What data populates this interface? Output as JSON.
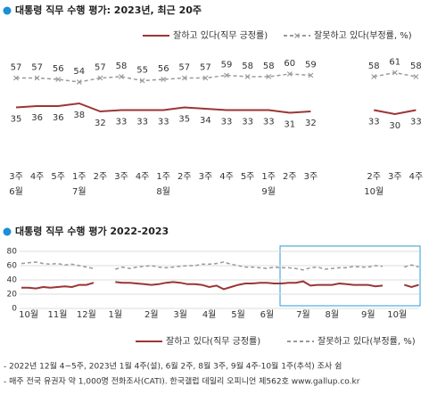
{
  "chart_data": [
    {
      "type": "line",
      "title": "대통령 직무 수행 평가: 2023년, 최근 20주",
      "categories": [
        "3주",
        "4주",
        "5주",
        "1주",
        "2주",
        "3주",
        "4주",
        "1주",
        "2주",
        "3주",
        "4주",
        "5주",
        "1주",
        "2주",
        "3주",
        null,
        null,
        "2주",
        "3주",
        "4주"
      ],
      "months": [
        "6월",
        null,
        null,
        "7월",
        null,
        null,
        null,
        "8월",
        null,
        null,
        null,
        null,
        "9월",
        null,
        null,
        null,
        null,
        "10월",
        null,
        null
      ],
      "ylim": [
        10,
        70
      ],
      "series": [
        {
          "name": "잘하고 있다(직무 긍정률)",
          "color": "#9b3535",
          "style": "solid",
          "values": [
            35,
            36,
            36,
            38,
            32,
            33,
            33,
            33,
            35,
            34,
            33,
            33,
            33,
            31,
            32,
            null,
            null,
            33,
            30,
            33
          ]
        },
        {
          "name": "잘못하고 있다(부정률, %)",
          "color": "#999999",
          "style": "dashed",
          "marker": "x",
          "values": [
            57,
            57,
            56,
            54,
            57,
            58,
            55,
            56,
            57,
            57,
            59,
            58,
            58,
            60,
            59,
            null,
            null,
            58,
            61,
            58
          ]
        }
      ]
    },
    {
      "type": "line",
      "title": "대통령 직무 수행 평가 2022-2023",
      "categories": [
        null,
        "10월",
        null,
        null,
        null,
        "11월",
        null,
        null,
        null,
        "12월",
        null,
        null,
        null,
        "1월",
        null,
        null,
        null,
        null,
        "2월",
        null,
        null,
        null,
        "3월",
        null,
        null,
        null,
        "4월",
        null,
        null,
        null,
        "5월",
        null,
        null,
        null,
        "6월",
        null,
        null,
        null,
        null,
        "7월",
        null,
        null,
        null,
        "8월",
        null,
        null,
        null,
        null,
        "9월",
        null,
        null,
        null,
        "10월",
        null,
        null,
        null
      ],
      "ylim": [
        0,
        80
      ],
      "yticks": [
        0,
        20,
        40,
        60,
        80
      ],
      "grid": true,
      "series": [
        {
          "name": "잘하고 있다(직무 긍정률)",
          "color": "#9b3535",
          "style": "solid",
          "values": [
            29,
            29,
            28,
            30,
            29,
            30,
            31,
            30,
            33,
            33,
            36,
            null,
            null,
            37,
            36,
            36,
            35,
            34,
            33,
            34,
            36,
            37,
            36,
            34,
            34,
            33,
            30,
            32,
            27,
            30,
            33,
            35,
            35,
            36,
            36,
            35,
            35,
            36,
            36,
            38,
            32,
            33,
            33,
            33,
            35,
            34,
            33,
            33,
            33,
            31,
            32,
            null,
            null,
            33,
            30,
            33
          ]
        },
        {
          "name": "잘못하고 있다(부정률, %)",
          "color": "#999999",
          "style": "dashed",
          "values": [
            63,
            64,
            65,
            63,
            62,
            63,
            61,
            62,
            60,
            58,
            56,
            null,
            null,
            55,
            58,
            56,
            58,
            59,
            60,
            58,
            57,
            58,
            59,
            60,
            60,
            62,
            62,
            63,
            65,
            62,
            60,
            58,
            58,
            57,
            56,
            58,
            57,
            57,
            56,
            54,
            57,
            58,
            55,
            56,
            57,
            57,
            59,
            58,
            58,
            60,
            59,
            null,
            null,
            58,
            61,
            58
          ]
        }
      ]
    }
  ],
  "notes": [
    "- 2022년 12월 4~5주, 2023년 1월 4주(설), 6월 2주, 8월 3주, 9월 4주·10월 1주(추석) 조사 쉼",
    "- 매주 전국 유권자 약 1,000명 전화조사(CATI). 한국갤럽 데일리 오피니언 제562호 www.gallup.co.kr"
  ]
}
